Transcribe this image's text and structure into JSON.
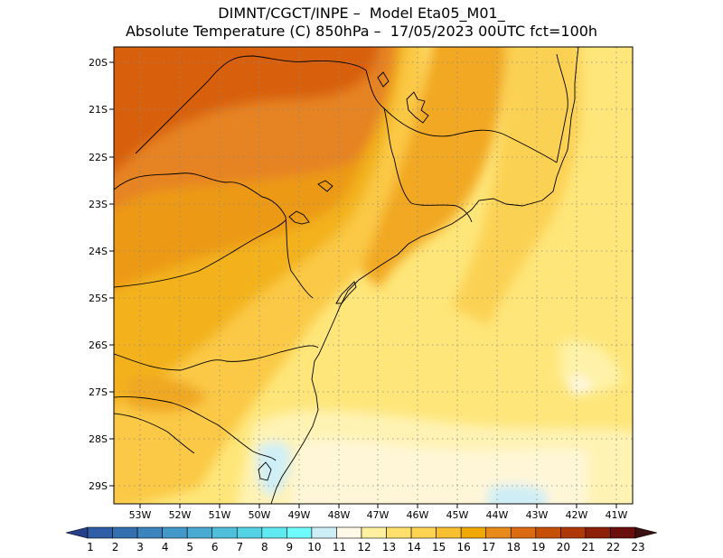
{
  "title": {
    "line1": "DIMNT/CGCT/INPE –  Model Eta05_M01_",
    "line2": "Absolute Temperature (C) 850hPa –  17/05/2023 00UTC fct=100h"
  },
  "map": {
    "lon_range": [
      -53.6,
      -40.6
    ],
    "lat_range": [
      -29.4,
      -19.8
    ],
    "lat_labels": [
      "20S",
      "21S",
      "22S",
      "23S",
      "24S",
      "25S",
      "26S",
      "27S",
      "28S",
      "29S"
    ],
    "lon_labels": [
      "53W",
      "52W",
      "51W",
      "50W",
      "49W",
      "48W",
      "47W",
      "46W",
      "45W",
      "44W",
      "43W",
      "42W",
      "41W"
    ],
    "grid": "dotted"
  },
  "colorbar": {
    "labels": [
      "1",
      "2",
      "3",
      "4",
      "5",
      "6",
      "7",
      "8",
      "9",
      "10",
      "11",
      "12",
      "13",
      "14",
      "15",
      "16",
      "17",
      "18",
      "19",
      "20",
      "21",
      "22",
      "23"
    ],
    "colors": [
      "#27408b",
      "#2f5da6",
      "#3470b0",
      "#3b84bd",
      "#4298c8",
      "#49aad2",
      "#4fbfdc",
      "#55d3e6",
      "#5fe9f0",
      "#6ffbfb",
      "#cdeef6",
      "#fff8e6",
      "#fff0a0",
      "#ffe06a",
      "#fed352",
      "#f8c030",
      "#f0a800",
      "#e88a1a",
      "#dc6a10",
      "#c65008",
      "#b03808",
      "#8c2008",
      "#6a0e0e"
    ],
    "left_cap": "#26408a",
    "right_cap": "#3c1010"
  }
}
